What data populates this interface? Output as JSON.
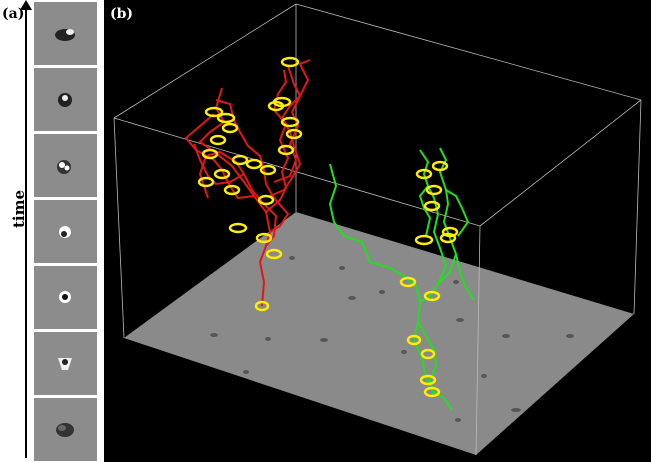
{
  "panel_a": {
    "label": "(a)",
    "axis_label": "time"
  },
  "panel_b": {
    "label": "(b)"
  },
  "colors": {
    "track_red": "#e01818",
    "track_green": "#22dd22",
    "marker": "#ffee00"
  }
}
